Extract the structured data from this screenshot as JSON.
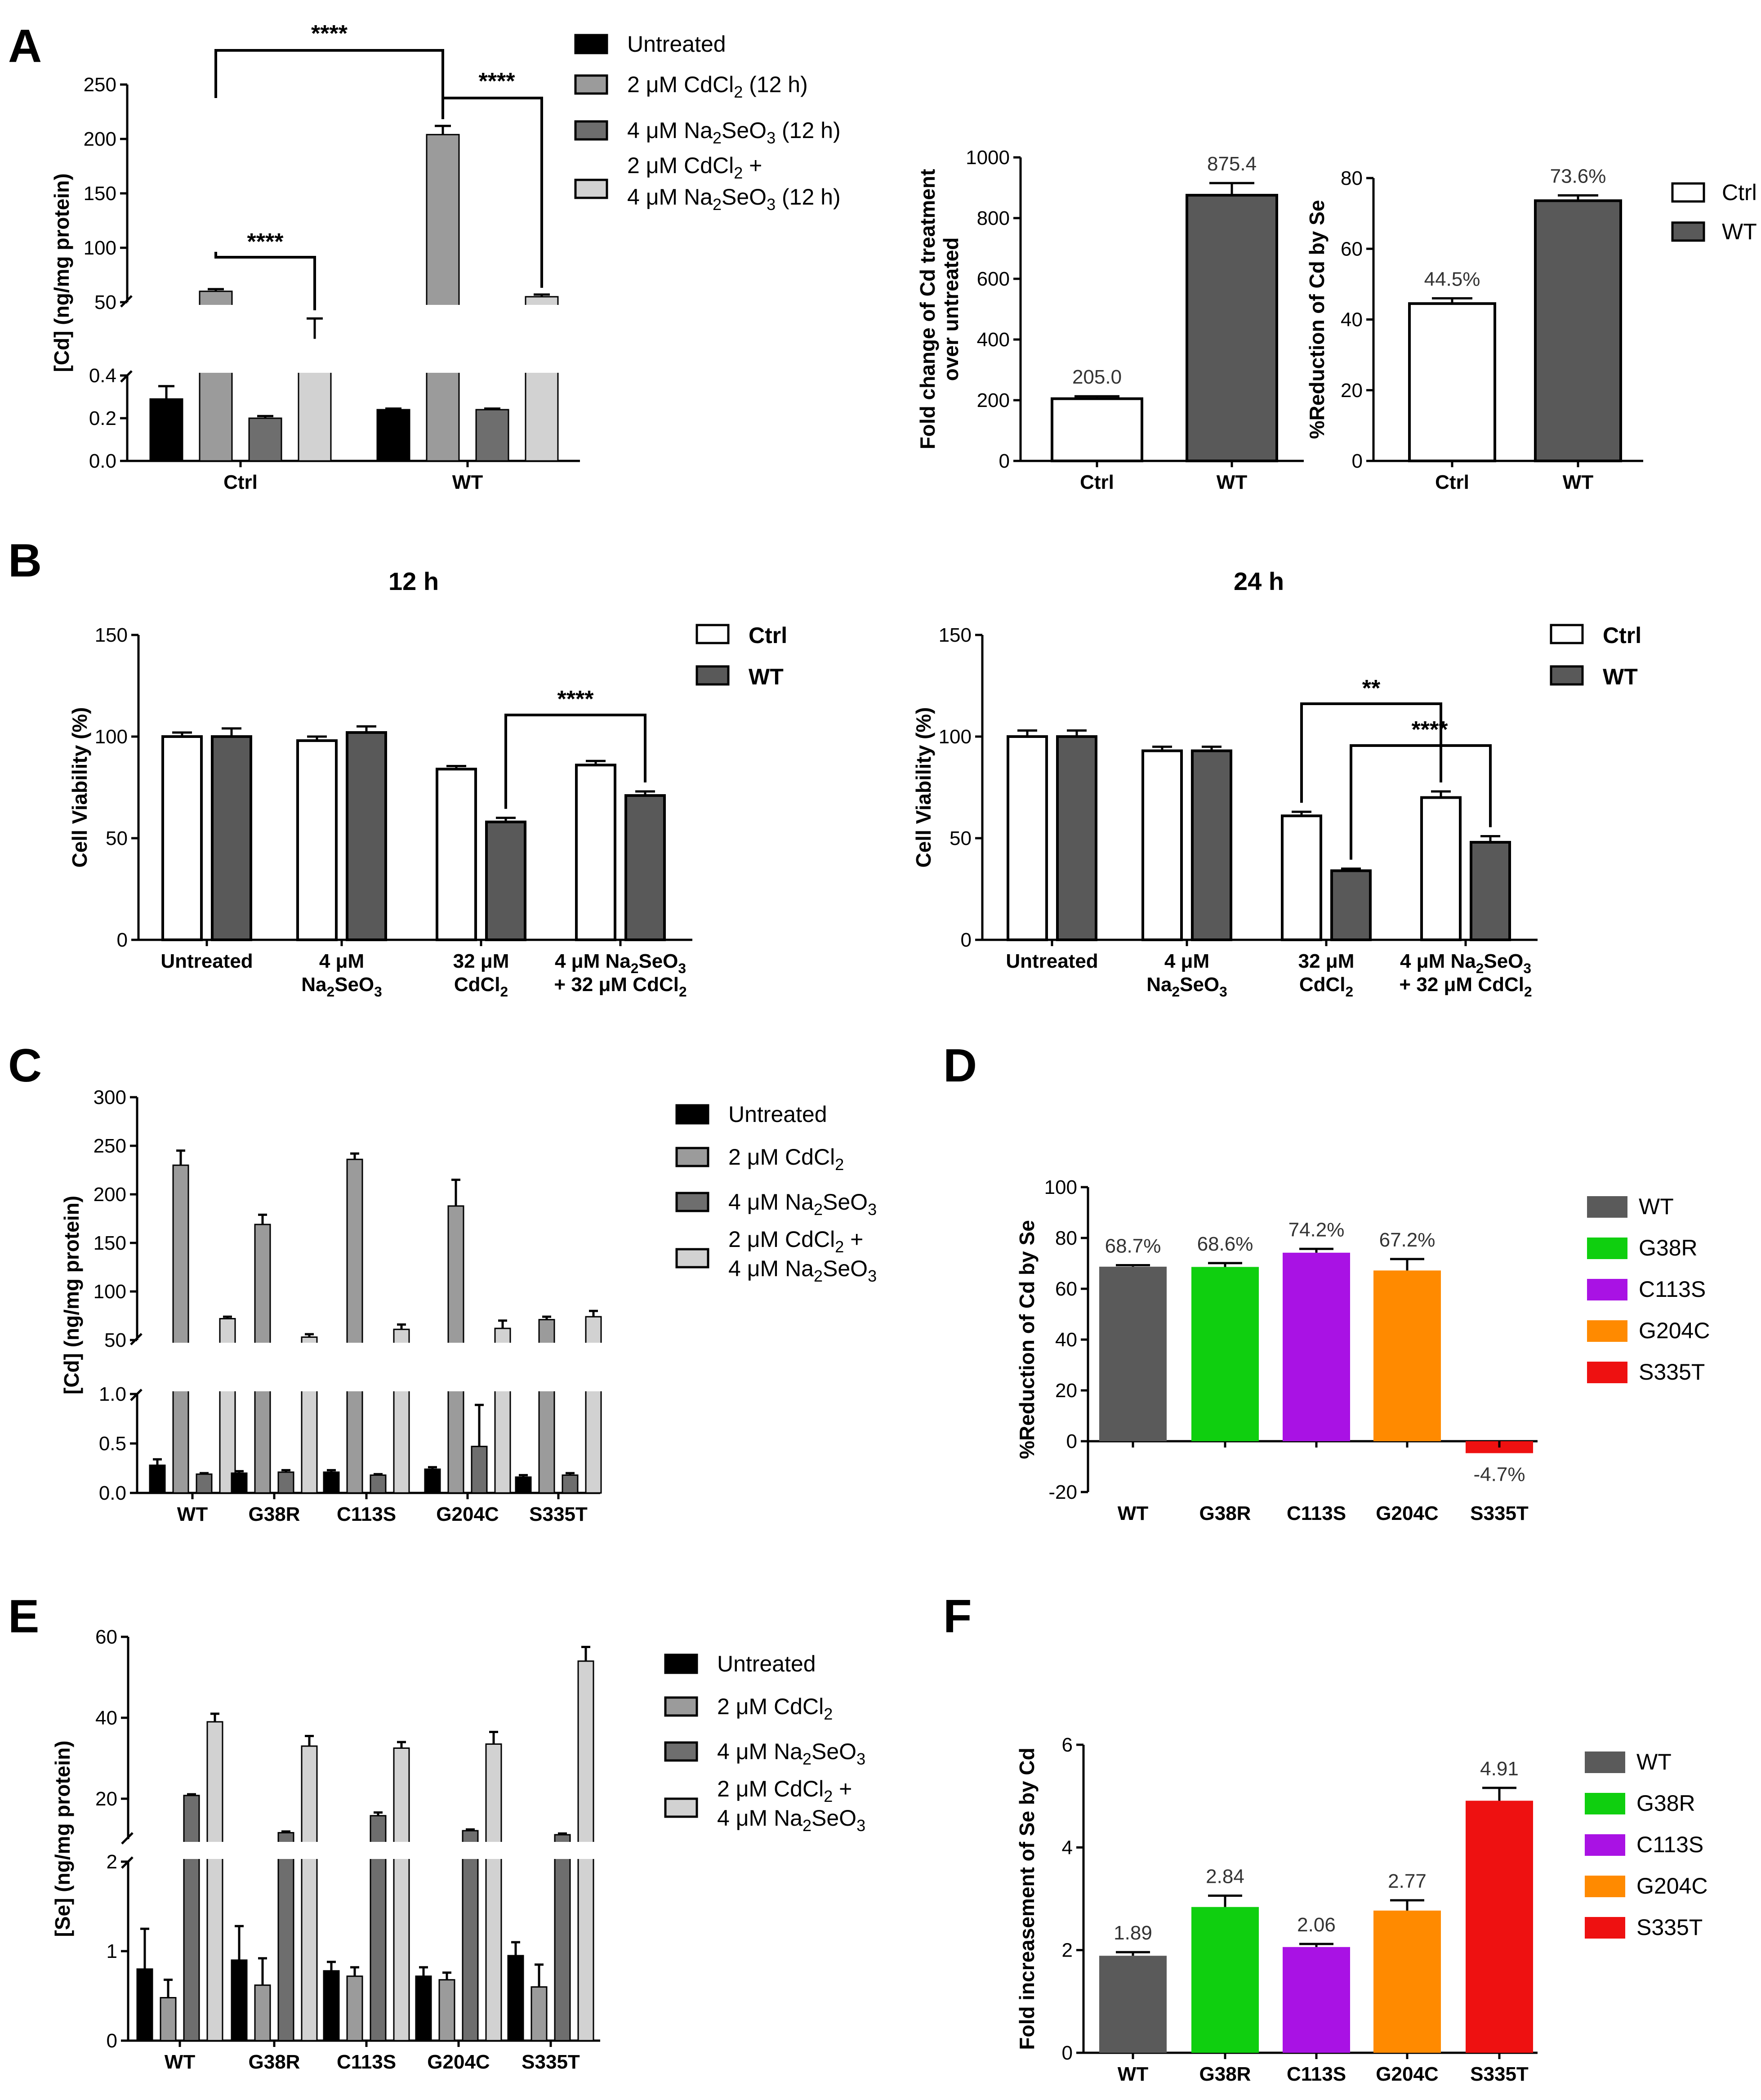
{
  "panels": {
    "A": "A",
    "B": "B",
    "C": "C",
    "D": "D",
    "E": "E",
    "F": "F"
  },
  "colors": {
    "untreated": "#000000",
    "cd": "#9b9b9b",
    "se": "#6e6e6e",
    "cdse": "#d2d2d2",
    "ctrl": "#ffffff",
    "wt_dark": "#595959",
    "WT": "#5a5a5a",
    "G38R": "#0fcf0f",
    "C113S": "#a912e4",
    "G204C": "#ff8a00",
    "S335T": "#ee1111"
  },
  "legends": {
    "A": [
      "Untreated",
      "2 μM CdCl2 (12 h)",
      "4 μM Na2SeO3 (12 h)",
      "2 μM CdCl2 +",
      "4 μM Na2SeO3 (12 h)"
    ],
    "Aside": [
      "Ctrl",
      "WT"
    ],
    "B": [
      "Ctrl",
      "WT"
    ],
    "CE": [
      "Untreated",
      "2 μM CdCl2",
      "4 μM Na2SeO3",
      "2 μM CdCl2 +",
      "4 μM Na2SeO3"
    ],
    "DF": [
      "WT",
      "G38R",
      "C113S",
      "G204C",
      "S335T"
    ]
  },
  "chart_data": [
    {
      "id": "A1",
      "type": "bar",
      "ylabel": "[Cd] (ng/mg protein)",
      "categories": [
        "Ctrl",
        "WT"
      ],
      "axis_break": {
        "lower": [
          0,
          0.4
        ],
        "upper": [
          50,
          250
        ]
      },
      "yticks_lower": [
        "0.0",
        "0.2",
        "0.4"
      ],
      "yticks_upper": [
        "50",
        "100",
        "150",
        "200",
        "250"
      ],
      "series": [
        {
          "name": "Untreated",
          "values": [
            0.29,
            0.24
          ],
          "errors": [
            0.06,
            0.005
          ]
        },
        {
          "name": "2 μM CdCl2 (12 h)",
          "values": [
            60,
            204
          ],
          "errors": [
            2,
            8
          ]
        },
        {
          "name": "4 μM Na2SeO3 (12 h)",
          "values": [
            0.2,
            0.24
          ],
          "errors": [
            0.01,
            0.005
          ]
        },
        {
          "name": "2 μM CdCl2 + 4 μM Na2SeO3 (12 h)",
          "values": [
            34,
            55
          ],
          "errors": [
            1,
            2
          ]
        }
      ],
      "significance": [
        "****",
        "****",
        "****"
      ]
    },
    {
      "id": "A2",
      "type": "bar",
      "ylabel": "Fold change of Cd treatment",
      "ylabel2": "over untreated",
      "categories": [
        "Ctrl",
        "WT"
      ],
      "values": [
        205.0,
        875.4
      ],
      "errors": [
        8,
        40
      ],
      "data_labels": [
        "205.0",
        "875.4"
      ],
      "ylim": [
        0,
        1000
      ],
      "yticks": [
        "0",
        "200",
        "400",
        "600",
        "800",
        "1000"
      ]
    },
    {
      "id": "A3",
      "type": "bar",
      "ylabel": "%Reduction of Cd by Se",
      "categories": [
        "Ctrl",
        "WT"
      ],
      "values": [
        44.5,
        73.6
      ],
      "errors": [
        1.5,
        1.5
      ],
      "data_labels": [
        "44.5%",
        "73.6%"
      ],
      "ylim": [
        0,
        80
      ],
      "yticks": [
        "0",
        "20",
        "40",
        "60",
        "80"
      ]
    },
    {
      "id": "B1",
      "type": "bar",
      "title": "12 h",
      "ylabel": "Cell Viability (%)",
      "categories": [
        [
          "Untreated",
          ""
        ],
        [
          "4 μM",
          "Na2SeO3"
        ],
        [
          "32 μM",
          "CdCl2"
        ],
        [
          "4 μM Na2SeO3",
          "+ 32 μM CdCl2"
        ]
      ],
      "series": [
        {
          "name": "Ctrl",
          "values": [
            100,
            98,
            84,
            86
          ],
          "errors": [
            2,
            2,
            1.5,
            2
          ]
        },
        {
          "name": "WT",
          "values": [
            100,
            102,
            58,
            71
          ],
          "errors": [
            4,
            3,
            2,
            2
          ]
        }
      ],
      "ylim": [
        0,
        150
      ],
      "yticks": [
        "0",
        "50",
        "100",
        "150"
      ],
      "significance": [
        "****"
      ]
    },
    {
      "id": "B2",
      "type": "bar",
      "title": "24 h",
      "ylabel": "Cell Viability (%)",
      "categories": [
        [
          "Untreated",
          ""
        ],
        [
          "4 μM",
          "Na2SeO3"
        ],
        [
          "32 μM",
          "CdCl2"
        ],
        [
          "4 μM Na2SeO3",
          "+ 32 μM CdCl2"
        ]
      ],
      "series": [
        {
          "name": "Ctrl",
          "values": [
            100,
            93,
            61,
            70
          ],
          "errors": [
            3,
            2,
            2,
            3
          ]
        },
        {
          "name": "WT",
          "values": [
            100,
            93,
            34,
            48
          ],
          "errors": [
            3,
            2,
            1,
            3
          ]
        }
      ],
      "ylim": [
        0,
        150
      ],
      "yticks": [
        "0",
        "50",
        "100",
        "150"
      ],
      "significance": [
        "**",
        "****"
      ]
    },
    {
      "id": "C",
      "type": "bar",
      "ylabel": "[Cd] (ng/mg protein)",
      "categories": [
        "WT",
        "G38R",
        "C113S",
        "G204C",
        "S335T"
      ],
      "axis_break": {
        "lower": [
          0,
          1.0
        ],
        "upper": [
          50,
          300
        ]
      },
      "yticks_lower": [
        "0.0",
        "0.5",
        "1.0"
      ],
      "yticks_upper": [
        "50",
        "100",
        "150",
        "200",
        "250",
        "300"
      ],
      "series": [
        {
          "name": "Untreated",
          "values": [
            0.28,
            0.2,
            0.21,
            0.24,
            0.16
          ],
          "errors": [
            0.06,
            0.02,
            0.02,
            0.02,
            0.02
          ]
        },
        {
          "name": "2 μM CdCl2",
          "values": [
            230,
            169,
            236,
            188,
            71
          ],
          "errors": [
            15,
            10,
            6,
            27,
            3
          ]
        },
        {
          "name": "4 μM Na2SeO3",
          "values": [
            0.19,
            0.21,
            0.18,
            0.47,
            0.18
          ],
          "errors": [
            0.01,
            0.02,
            0.01,
            0.42,
            0.02
          ]
        },
        {
          "name": "2 μM CdCl2 + 4 μM Na2SeO3",
          "values": [
            72,
            53,
            61,
            62,
            74
          ],
          "errors": [
            2,
            3,
            5,
            8,
            6
          ]
        }
      ]
    },
    {
      "id": "D",
      "type": "bar",
      "ylabel": "%Reduction of Cd by Se",
      "categories": [
        "WT",
        "G38R",
        "C113S",
        "G204C",
        "S335T"
      ],
      "values": [
        68.7,
        68.6,
        74.2,
        67.2,
        -4.7
      ],
      "errors": [
        0.6,
        1.5,
        1.5,
        4.5,
        0.5
      ],
      "data_labels": [
        "68.7%",
        "68.6%",
        "74.2%",
        "67.2%",
        "-4.7%"
      ],
      "ylim": [
        -20,
        100
      ],
      "yticks": [
        "-20",
        "0",
        "20",
        "40",
        "60",
        "80",
        "100"
      ]
    },
    {
      "id": "E",
      "type": "bar",
      "ylabel": "[Se] (ng/mg protein)",
      "categories": [
        "WT",
        "G38R",
        "C113S",
        "G204C",
        "S335T"
      ],
      "axis_break": {
        "lower": [
          0,
          2
        ],
        "upper": [
          10,
          60
        ]
      },
      "yticks_lower": [
        "0",
        "1",
        "2"
      ],
      "yticks_upper": [
        "20",
        "40",
        "60"
      ],
      "series": [
        {
          "name": "Untreated",
          "values": [
            0.8,
            0.9,
            0.78,
            0.72,
            0.95
          ],
          "errors": [
            0.45,
            0.38,
            0.1,
            0.1,
            0.15
          ]
        },
        {
          "name": "2 μM CdCl2",
          "values": [
            0.48,
            0.62,
            0.72,
            0.68,
            0.6
          ],
          "errors": [
            0.2,
            0.3,
            0.1,
            0.08,
            0.25
          ]
        },
        {
          "name": "4 μM Na2SeO3",
          "values": [
            20.8,
            11.6,
            15.8,
            12.1,
            11.1
          ],
          "errors": [
            0.3,
            0.3,
            0.8,
            0.3,
            0.3
          ]
        },
        {
          "name": "2 μM CdCl2 + 4 μM Na2SeO3",
          "values": [
            39,
            33,
            32.5,
            33.5,
            54
          ],
          "errors": [
            2,
            2.5,
            1.5,
            3,
            3.5
          ]
        }
      ]
    },
    {
      "id": "F",
      "type": "bar",
      "ylabel": "Fold increasement of Se by Cd",
      "categories": [
        "WT",
        "G38R",
        "C113S",
        "G204C",
        "S335T"
      ],
      "values": [
        1.89,
        2.84,
        2.06,
        2.77,
        4.91
      ],
      "errors": [
        0.07,
        0.22,
        0.06,
        0.2,
        0.25
      ],
      "data_labels": [
        "1.89",
        "2.84",
        "2.06",
        "2.77",
        "4.91"
      ],
      "ylim": [
        0,
        6
      ],
      "yticks": [
        "0",
        "2",
        "4",
        "6"
      ]
    }
  ]
}
